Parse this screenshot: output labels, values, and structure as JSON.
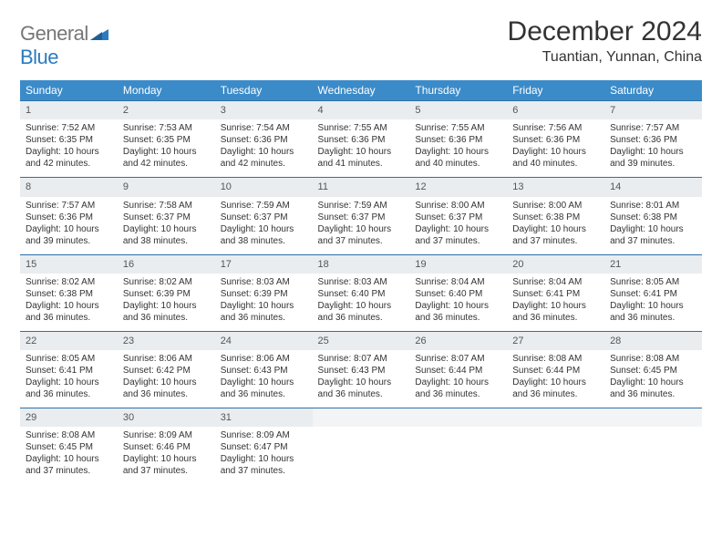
{
  "logo": {
    "word1": "General",
    "word2": "Blue"
  },
  "title": "December 2024",
  "location": "Tuantian, Yunnan, China",
  "colors": {
    "header_bg": "#3b8bc9",
    "header_text": "#ffffff",
    "row_divider": "#2f6fa8",
    "daynum_bg": "#e9edf0",
    "body_text": "#333333",
    "logo_gray": "#777777",
    "logo_blue": "#2b7bbf",
    "page_bg": "#ffffff"
  },
  "typography": {
    "title_fontsize": 30,
    "location_fontsize": 16,
    "dayheader_fontsize": 12,
    "cell_fontsize": 10,
    "font_family": "Arial"
  },
  "weekdays": [
    "Sunday",
    "Monday",
    "Tuesday",
    "Wednesday",
    "Thursday",
    "Friday",
    "Saturday"
  ],
  "days": [
    {
      "n": 1,
      "sunrise": "7:52 AM",
      "sunset": "6:35 PM",
      "daylight": "10 hours and 42 minutes."
    },
    {
      "n": 2,
      "sunrise": "7:53 AM",
      "sunset": "6:35 PM",
      "daylight": "10 hours and 42 minutes."
    },
    {
      "n": 3,
      "sunrise": "7:54 AM",
      "sunset": "6:36 PM",
      "daylight": "10 hours and 42 minutes."
    },
    {
      "n": 4,
      "sunrise": "7:55 AM",
      "sunset": "6:36 PM",
      "daylight": "10 hours and 41 minutes."
    },
    {
      "n": 5,
      "sunrise": "7:55 AM",
      "sunset": "6:36 PM",
      "daylight": "10 hours and 40 minutes."
    },
    {
      "n": 6,
      "sunrise": "7:56 AM",
      "sunset": "6:36 PM",
      "daylight": "10 hours and 40 minutes."
    },
    {
      "n": 7,
      "sunrise": "7:57 AM",
      "sunset": "6:36 PM",
      "daylight": "10 hours and 39 minutes."
    },
    {
      "n": 8,
      "sunrise": "7:57 AM",
      "sunset": "6:36 PM",
      "daylight": "10 hours and 39 minutes."
    },
    {
      "n": 9,
      "sunrise": "7:58 AM",
      "sunset": "6:37 PM",
      "daylight": "10 hours and 38 minutes."
    },
    {
      "n": 10,
      "sunrise": "7:59 AM",
      "sunset": "6:37 PM",
      "daylight": "10 hours and 38 minutes."
    },
    {
      "n": 11,
      "sunrise": "7:59 AM",
      "sunset": "6:37 PM",
      "daylight": "10 hours and 37 minutes."
    },
    {
      "n": 12,
      "sunrise": "8:00 AM",
      "sunset": "6:37 PM",
      "daylight": "10 hours and 37 minutes."
    },
    {
      "n": 13,
      "sunrise": "8:00 AM",
      "sunset": "6:38 PM",
      "daylight": "10 hours and 37 minutes."
    },
    {
      "n": 14,
      "sunrise": "8:01 AM",
      "sunset": "6:38 PM",
      "daylight": "10 hours and 37 minutes."
    },
    {
      "n": 15,
      "sunrise": "8:02 AM",
      "sunset": "6:38 PM",
      "daylight": "10 hours and 36 minutes."
    },
    {
      "n": 16,
      "sunrise": "8:02 AM",
      "sunset": "6:39 PM",
      "daylight": "10 hours and 36 minutes."
    },
    {
      "n": 17,
      "sunrise": "8:03 AM",
      "sunset": "6:39 PM",
      "daylight": "10 hours and 36 minutes."
    },
    {
      "n": 18,
      "sunrise": "8:03 AM",
      "sunset": "6:40 PM",
      "daylight": "10 hours and 36 minutes."
    },
    {
      "n": 19,
      "sunrise": "8:04 AM",
      "sunset": "6:40 PM",
      "daylight": "10 hours and 36 minutes."
    },
    {
      "n": 20,
      "sunrise": "8:04 AM",
      "sunset": "6:41 PM",
      "daylight": "10 hours and 36 minutes."
    },
    {
      "n": 21,
      "sunrise": "8:05 AM",
      "sunset": "6:41 PM",
      "daylight": "10 hours and 36 minutes."
    },
    {
      "n": 22,
      "sunrise": "8:05 AM",
      "sunset": "6:41 PM",
      "daylight": "10 hours and 36 minutes."
    },
    {
      "n": 23,
      "sunrise": "8:06 AM",
      "sunset": "6:42 PM",
      "daylight": "10 hours and 36 minutes."
    },
    {
      "n": 24,
      "sunrise": "8:06 AM",
      "sunset": "6:43 PM",
      "daylight": "10 hours and 36 minutes."
    },
    {
      "n": 25,
      "sunrise": "8:07 AM",
      "sunset": "6:43 PM",
      "daylight": "10 hours and 36 minutes."
    },
    {
      "n": 26,
      "sunrise": "8:07 AM",
      "sunset": "6:44 PM",
      "daylight": "10 hours and 36 minutes."
    },
    {
      "n": 27,
      "sunrise": "8:08 AM",
      "sunset": "6:44 PM",
      "daylight": "10 hours and 36 minutes."
    },
    {
      "n": 28,
      "sunrise": "8:08 AM",
      "sunset": "6:45 PM",
      "daylight": "10 hours and 36 minutes."
    },
    {
      "n": 29,
      "sunrise": "8:08 AM",
      "sunset": "6:45 PM",
      "daylight": "10 hours and 37 minutes."
    },
    {
      "n": 30,
      "sunrise": "8:09 AM",
      "sunset": "6:46 PM",
      "daylight": "10 hours and 37 minutes."
    },
    {
      "n": 31,
      "sunrise": "8:09 AM",
      "sunset": "6:47 PM",
      "daylight": "10 hours and 37 minutes."
    }
  ],
  "labels": {
    "sunrise": "Sunrise: ",
    "sunset": "Sunset: ",
    "daylight": "Daylight: "
  },
  "layout": {
    "columns": 7,
    "first_weekday_index": 0,
    "total_cells": 35
  }
}
